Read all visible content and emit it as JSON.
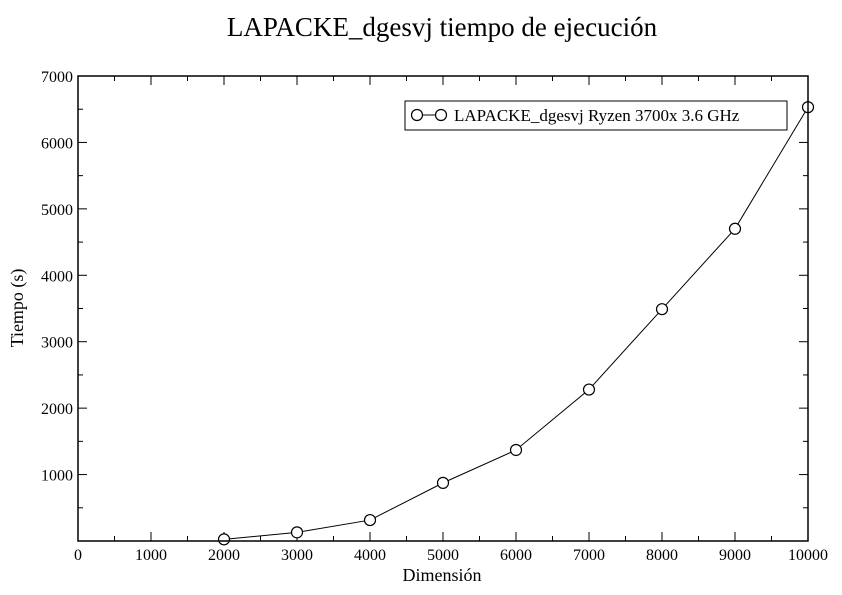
{
  "chart_data": {
    "type": "line",
    "title": "LAPACKE_dgesvj tiempo de ejecución",
    "xlabel": "Dimensión",
    "ylabel": "Tiempo (s)",
    "xlim": [
      0,
      10000
    ],
    "ylim": [
      0,
      7000
    ],
    "xticks": [
      "0",
      "1000",
      "2000",
      "3000",
      "4000",
      "5000",
      "6000",
      "7000",
      "8000",
      "9000",
      "10000"
    ],
    "yticks": [
      "1000",
      "2000",
      "3000",
      "4000",
      "5000",
      "6000",
      "7000"
    ],
    "grid": false,
    "legend_position": "top-right",
    "series": [
      {
        "name": "LAPACKE_dgesvj Ryzen 3700x 3.6 GHz",
        "color": "#000000",
        "marker": "circle-open",
        "x": [
          2000,
          3000,
          4000,
          5000,
          6000,
          7000,
          8000,
          9000,
          10000
        ],
        "y": [
          25,
          130,
          315,
          875,
          1370,
          2280,
          3490,
          4700,
          6530
        ]
      }
    ]
  }
}
